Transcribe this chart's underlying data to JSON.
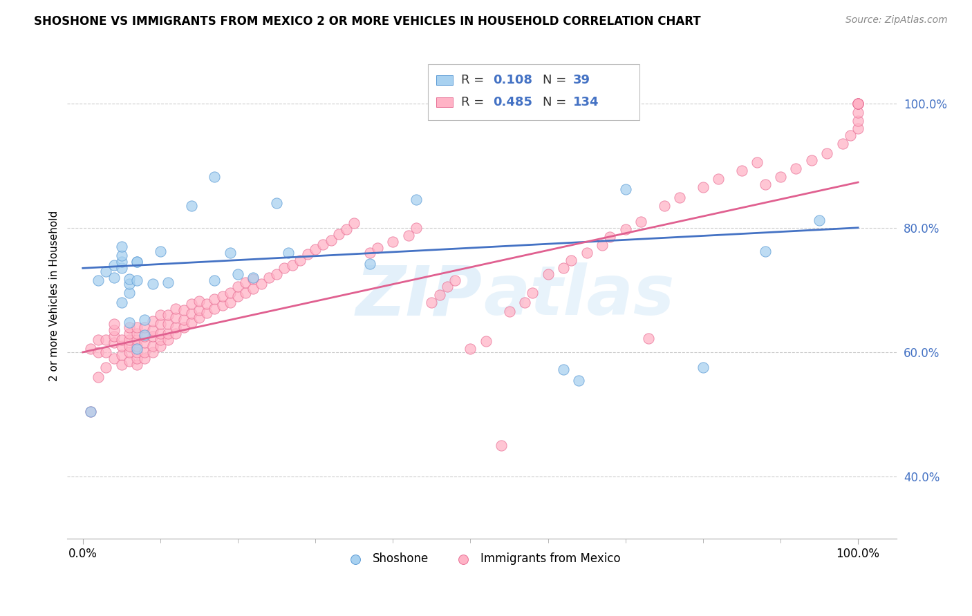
{
  "title": "SHOSHONE VS IMMIGRANTS FROM MEXICO 2 OR MORE VEHICLES IN HOUSEHOLD CORRELATION CHART",
  "source": "Source: ZipAtlas.com",
  "ylabel": "2 or more Vehicles in Household",
  "color_blue": "#a8d1f0",
  "color_pink": "#ffb3c6",
  "color_blue_edge": "#5b9bd5",
  "color_pink_edge": "#e87096",
  "color_blue_line": "#4472c4",
  "color_pink_line": "#e06090",
  "color_axis_label": "#4472c4",
  "watermark_zip": "#cde5f7",
  "watermark_atlas": "#cde5f7",
  "background_color": "#ffffff",
  "grid_color": "#cccccc",
  "blue_line_x0": 0.0,
  "blue_line_y0": 0.735,
  "blue_line_x1": 1.0,
  "blue_line_y1": 0.8,
  "pink_line_x0": 0.0,
  "pink_line_y0": 0.6,
  "pink_line_x1": 1.0,
  "pink_line_y1": 0.873,
  "xlim_min": -0.02,
  "xlim_max": 1.05,
  "ylim_min": 0.3,
  "ylim_max": 1.08,
  "yticks": [
    0.4,
    0.6,
    0.8,
    1.0
  ],
  "ytick_labels": [
    "40.0%",
    "60.0%",
    "80.0%",
    "100.0%"
  ],
  "shoshone_x": [
    0.01,
    0.02,
    0.03,
    0.04,
    0.04,
    0.05,
    0.05,
    0.05,
    0.05,
    0.05,
    0.06,
    0.06,
    0.06,
    0.06,
    0.07,
    0.07,
    0.07,
    0.07,
    0.08,
    0.08,
    0.09,
    0.1,
    0.11,
    0.14,
    0.17,
    0.17,
    0.19,
    0.22,
    0.25,
    0.37,
    0.43,
    0.62,
    0.64,
    0.7,
    0.8,
    0.88,
    0.95,
    0.265,
    0.2
  ],
  "shoshone_y": [
    0.505,
    0.715,
    0.73,
    0.72,
    0.74,
    0.68,
    0.735,
    0.745,
    0.755,
    0.77,
    0.648,
    0.695,
    0.71,
    0.718,
    0.605,
    0.715,
    0.745,
    0.745,
    0.628,
    0.652,
    0.71,
    0.762,
    0.712,
    0.835,
    0.715,
    0.882,
    0.76,
    0.72,
    0.84,
    0.742,
    0.845,
    0.572,
    0.555,
    0.862,
    0.575,
    0.762,
    0.812,
    0.76,
    0.725
  ],
  "mexico_x": [
    0.01,
    0.01,
    0.02,
    0.02,
    0.02,
    0.03,
    0.03,
    0.03,
    0.04,
    0.04,
    0.04,
    0.04,
    0.04,
    0.05,
    0.05,
    0.05,
    0.05,
    0.06,
    0.06,
    0.06,
    0.06,
    0.06,
    0.06,
    0.07,
    0.07,
    0.07,
    0.07,
    0.07,
    0.07,
    0.07,
    0.08,
    0.08,
    0.08,
    0.08,
    0.08,
    0.09,
    0.09,
    0.09,
    0.09,
    0.09,
    0.1,
    0.1,
    0.1,
    0.1,
    0.1,
    0.11,
    0.11,
    0.11,
    0.11,
    0.12,
    0.12,
    0.12,
    0.12,
    0.13,
    0.13,
    0.13,
    0.14,
    0.14,
    0.14,
    0.15,
    0.15,
    0.15,
    0.16,
    0.16,
    0.17,
    0.17,
    0.18,
    0.18,
    0.19,
    0.19,
    0.2,
    0.2,
    0.21,
    0.21,
    0.22,
    0.22,
    0.23,
    0.24,
    0.25,
    0.26,
    0.27,
    0.28,
    0.29,
    0.3,
    0.31,
    0.32,
    0.33,
    0.34,
    0.35,
    0.37,
    0.38,
    0.4,
    0.42,
    0.43,
    0.45,
    0.46,
    0.47,
    0.48,
    0.5,
    0.52,
    0.54,
    0.55,
    0.57,
    0.58,
    0.6,
    0.62,
    0.63,
    0.65,
    0.67,
    0.68,
    0.7,
    0.72,
    0.73,
    0.75,
    0.77,
    0.8,
    0.82,
    0.85,
    0.87,
    0.88,
    0.9,
    0.92,
    0.94,
    0.96,
    0.98,
    0.99,
    1.0,
    1.0,
    1.0,
    1.0,
    1.0,
    1.0,
    1.0,
    1.0
  ],
  "mexico_y": [
    0.605,
    0.505,
    0.56,
    0.6,
    0.62,
    0.575,
    0.6,
    0.62,
    0.59,
    0.615,
    0.625,
    0.635,
    0.645,
    0.58,
    0.595,
    0.61,
    0.62,
    0.585,
    0.6,
    0.61,
    0.62,
    0.63,
    0.64,
    0.58,
    0.59,
    0.6,
    0.61,
    0.62,
    0.63,
    0.64,
    0.59,
    0.6,
    0.615,
    0.625,
    0.64,
    0.6,
    0.61,
    0.625,
    0.635,
    0.65,
    0.61,
    0.62,
    0.63,
    0.645,
    0.66,
    0.62,
    0.63,
    0.645,
    0.66,
    0.63,
    0.64,
    0.655,
    0.67,
    0.64,
    0.652,
    0.668,
    0.648,
    0.662,
    0.678,
    0.655,
    0.668,
    0.682,
    0.663,
    0.678,
    0.67,
    0.685,
    0.675,
    0.69,
    0.68,
    0.695,
    0.69,
    0.705,
    0.695,
    0.712,
    0.702,
    0.718,
    0.71,
    0.72,
    0.725,
    0.735,
    0.74,
    0.748,
    0.758,
    0.765,
    0.773,
    0.78,
    0.79,
    0.798,
    0.808,
    0.76,
    0.768,
    0.778,
    0.788,
    0.8,
    0.68,
    0.692,
    0.705,
    0.715,
    0.605,
    0.618,
    0.45,
    0.665,
    0.68,
    0.695,
    0.725,
    0.735,
    0.748,
    0.76,
    0.772,
    0.785,
    0.798,
    0.81,
    0.622,
    0.835,
    0.848,
    0.865,
    0.878,
    0.892,
    0.905,
    0.87,
    0.882,
    0.895,
    0.908,
    0.92,
    0.935,
    0.948,
    0.96,
    0.972,
    0.985,
    1.0,
    1.0,
    1.0,
    1.0,
    1.0
  ]
}
